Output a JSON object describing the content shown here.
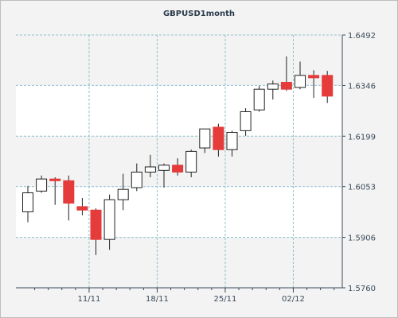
{
  "chart_data": {
    "type": "candlestick",
    "title": "GBPUSD1month",
    "y_axis": {
      "min": 1.576,
      "max": 1.6492,
      "ticks": [
        "1.6492",
        "1.6346",
        "1.6199",
        "1.6053",
        "1.5906",
        "1.5760"
      ],
      "position": "right"
    },
    "x_axis": {
      "ticks": [
        {
          "label": "11/11",
          "index": 4.5
        },
        {
          "label": "18/11",
          "index": 9.5
        },
        {
          "label": "25/11",
          "index": 14.5
        },
        {
          "label": "02/12",
          "index": 19.5
        }
      ]
    },
    "grid": true,
    "colors": {
      "up": "#ffffff",
      "down": "#e53b3b",
      "grid": "#8fc0cc",
      "plot_bg": "#ffffff",
      "band_bg": "#f3f3f3",
      "axis": "#3a4a5a"
    },
    "candles": [
      {
        "open": 1.598,
        "high": 1.6055,
        "low": 1.595,
        "close": 1.6035
      },
      {
        "open": 1.604,
        "high": 1.6085,
        "low": 1.6035,
        "close": 1.6075
      },
      {
        "open": 1.6075,
        "high": 1.608,
        "low": 1.6,
        "close": 1.607
      },
      {
        "open": 1.607,
        "high": 1.6085,
        "low": 1.5955,
        "close": 1.6005
      },
      {
        "open": 1.5995,
        "high": 1.602,
        "low": 1.597,
        "close": 1.5985
      },
      {
        "open": 1.5985,
        "high": 1.599,
        "low": 1.5855,
        "close": 1.59
      },
      {
        "open": 1.59,
        "high": 1.603,
        "low": 1.587,
        "close": 1.6015
      },
      {
        "open": 1.6015,
        "high": 1.609,
        "low": 1.5985,
        "close": 1.6045
      },
      {
        "open": 1.605,
        "high": 1.612,
        "low": 1.604,
        "close": 1.6095
      },
      {
        "open": 1.6095,
        "high": 1.6145,
        "low": 1.608,
        "close": 1.611
      },
      {
        "open": 1.61,
        "high": 1.612,
        "low": 1.605,
        "close": 1.6115
      },
      {
        "open": 1.6115,
        "high": 1.6135,
        "low": 1.6085,
        "close": 1.6095
      },
      {
        "open": 1.6095,
        "high": 1.616,
        "low": 1.608,
        "close": 1.6155
      },
      {
        "open": 1.6165,
        "high": 1.622,
        "low": 1.615,
        "close": 1.622
      },
      {
        "open": 1.6225,
        "high": 1.6235,
        "low": 1.614,
        "close": 1.616
      },
      {
        "open": 1.616,
        "high": 1.6215,
        "low": 1.614,
        "close": 1.621
      },
      {
        "open": 1.6215,
        "high": 1.628,
        "low": 1.62,
        "close": 1.627
      },
      {
        "open": 1.6275,
        "high": 1.6345,
        "low": 1.627,
        "close": 1.6335
      },
      {
        "open": 1.6335,
        "high": 1.636,
        "low": 1.6305,
        "close": 1.635
      },
      {
        "open": 1.6355,
        "high": 1.643,
        "low": 1.633,
        "close": 1.6335
      },
      {
        "open": 1.634,
        "high": 1.6415,
        "low": 1.6335,
        "close": 1.6375
      },
      {
        "open": 1.6375,
        "high": 1.639,
        "low": 1.631,
        "close": 1.6368
      },
      {
        "open": 1.6375,
        "high": 1.6388,
        "low": 1.6295,
        "close": 1.6315
      }
    ]
  }
}
